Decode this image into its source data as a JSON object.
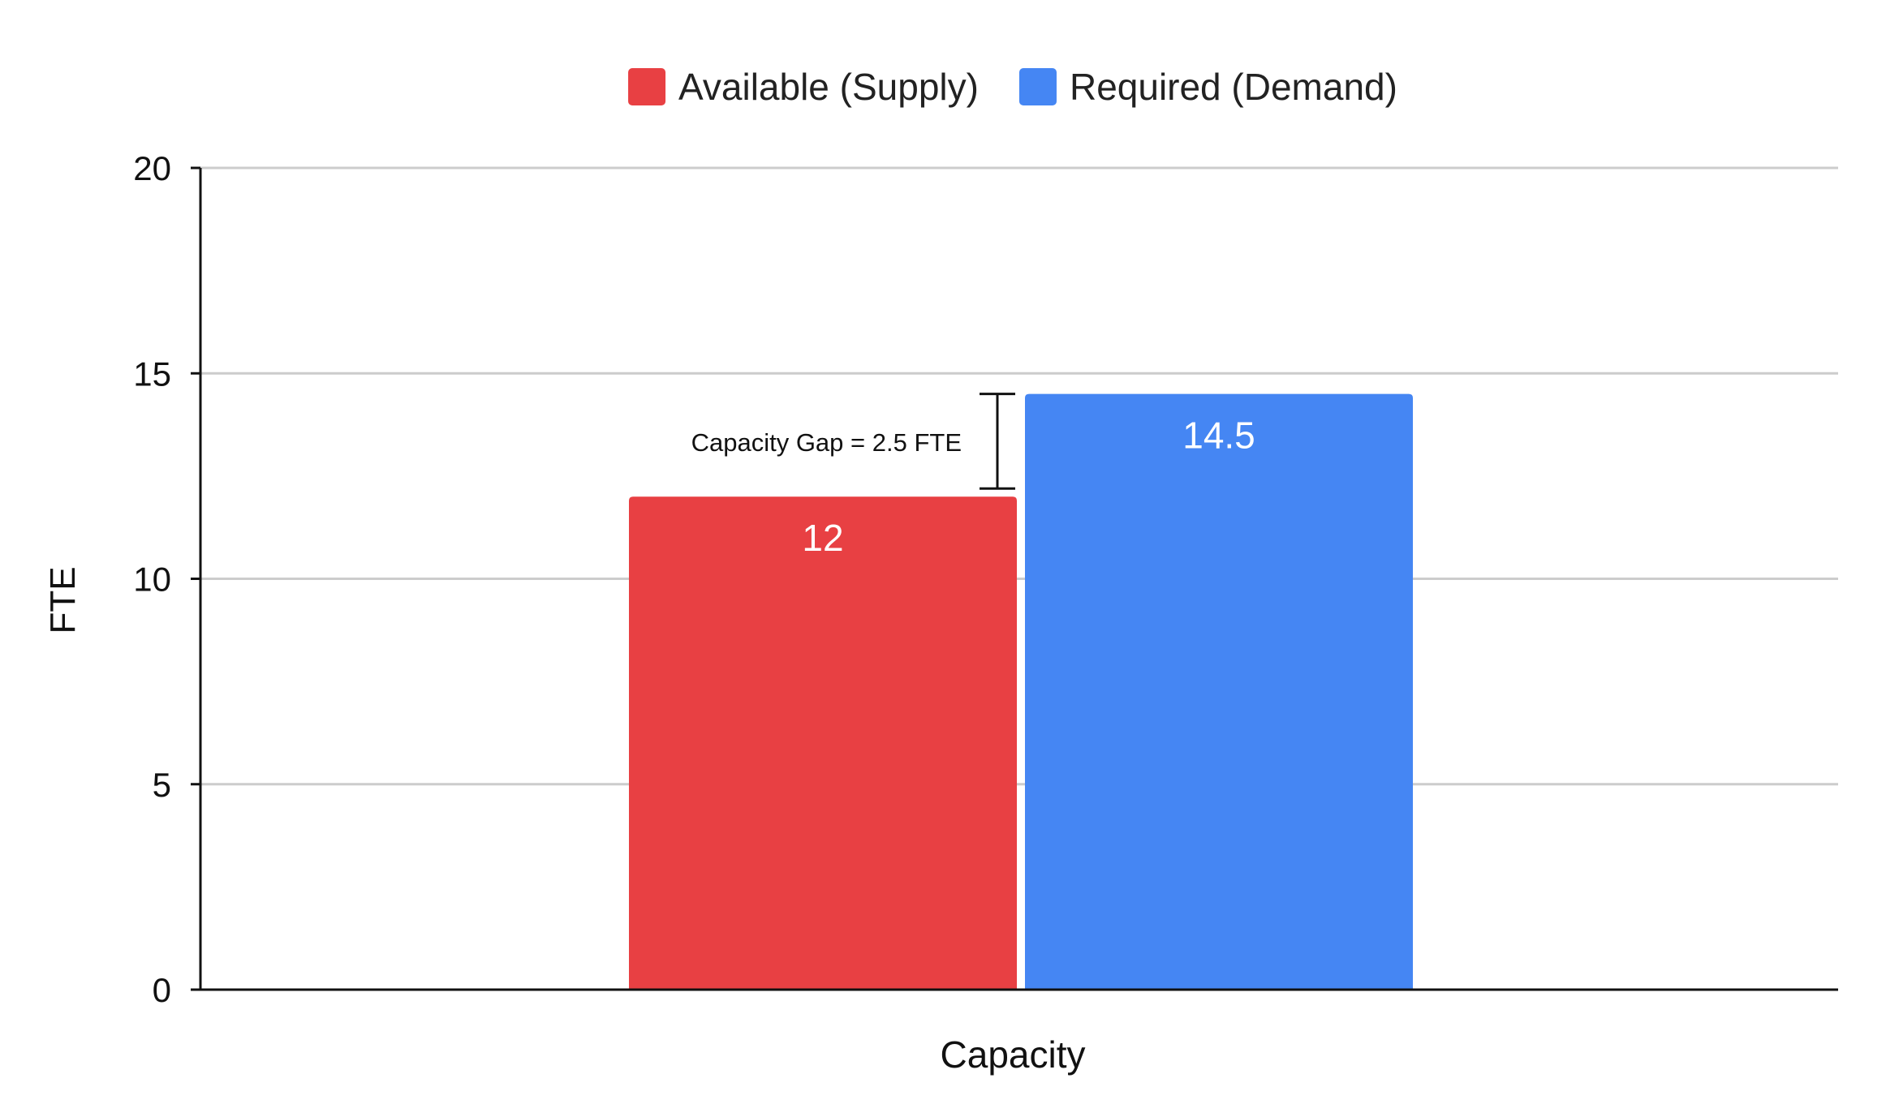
{
  "chart_data": {
    "type": "bar",
    "categories": [
      "Capacity"
    ],
    "series": [
      {
        "name": "Available (Supply)",
        "values": [
          12
        ],
        "color": "#e84043"
      },
      {
        "name": "Required (Demand)",
        "values": [
          14.5
        ],
        "color": "#4586f3"
      }
    ],
    "xlabel": "Capacity",
    "ylabel": "FTE",
    "ylim": [
      0,
      20
    ],
    "yticks": [
      0,
      5,
      10,
      15,
      20
    ],
    "ytick_labels": [
      "0",
      "5",
      "10",
      "15",
      "20"
    ],
    "data_labels": [
      "12",
      "14.5"
    ],
    "grid": true,
    "legend_position": "top",
    "annotation": {
      "text": "Capacity Gap = 2.5 FTE",
      "from": 12,
      "to": 14.5
    }
  }
}
